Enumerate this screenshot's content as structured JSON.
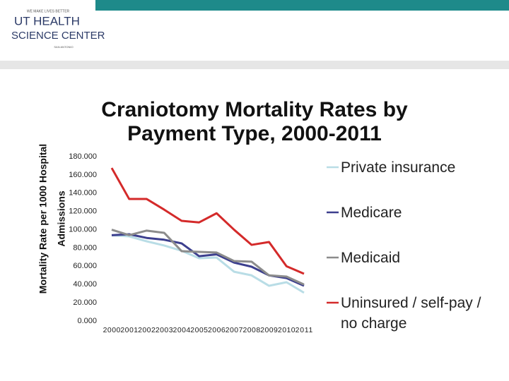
{
  "logo": {
    "tagline": "WE MAKE LIVES BETTER",
    "line1": "UT HEALTH",
    "line2": "SCIENCE CENTER",
    "city": "SAN ANTONIO"
  },
  "chart_data": {
    "type": "line",
    "title": [
      "Craniotomy Mortality Rates by",
      "Payment Type,  2000-2011"
    ],
    "y_label": [
      "Mortality Rate per 1000 Hospital",
      "Admissions"
    ],
    "categories": [
      "2000",
      "2001",
      "2002",
      "2003",
      "2004",
      "2005",
      "2006",
      "2007",
      "2008",
      "2009",
      "2010",
      "2011"
    ],
    "ylim": [
      0,
      180
    ],
    "yticks": [
      {
        "value": 0,
        "label": "0.000"
      },
      {
        "value": 20,
        "label": "20.000"
      },
      {
        "value": 40,
        "label": "40.000"
      },
      {
        "value": 60,
        "label": "60.000"
      },
      {
        "value": 80,
        "label": "80.000"
      },
      {
        "value": 100,
        "label": "100.000"
      },
      {
        "value": 120,
        "label": "120.000"
      },
      {
        "value": 140,
        "label": "140.000"
      },
      {
        "value": 160,
        "label": "160.000"
      },
      {
        "value": 180,
        "label": "180.000"
      }
    ],
    "series": [
      {
        "name": "Private insurance",
        "color": "#b9dde6",
        "values": [
          94,
          92.7,
          87.3,
          82.7,
          77,
          68.8,
          69.5,
          54,
          50,
          38.6,
          42.5,
          31
        ]
      },
      {
        "name": "Medicare",
        "color": "#3c3f8e",
        "values": [
          94,
          95,
          91,
          89,
          85,
          71,
          73,
          64,
          59.5,
          50,
          47,
          38.6
        ]
      },
      {
        "name": "Medicaid",
        "color": "#8c8c8c",
        "values": [
          100,
          94,
          99,
          96.6,
          76.5,
          75.7,
          75,
          65.7,
          65,
          50,
          48.7,
          40
        ]
      },
      {
        "name": "Uninsured / self-pay / no charge",
        "color": "#d42a2a",
        "values": [
          167.6,
          133.6,
          133.6,
          122,
          109.7,
          108,
          118,
          100,
          83.4,
          86.5,
          60,
          51.8
        ]
      }
    ]
  }
}
